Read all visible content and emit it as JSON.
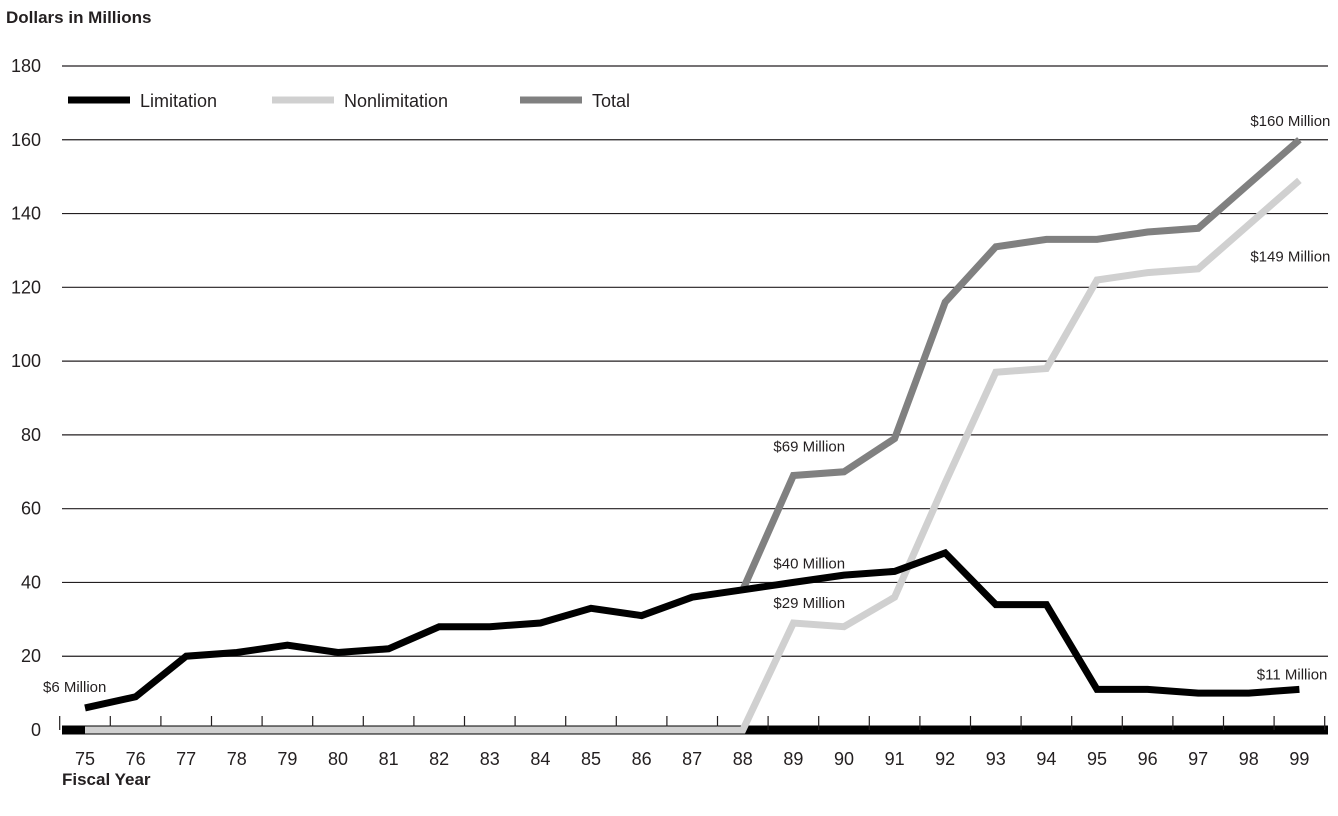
{
  "chart_data": {
    "type": "line",
    "title": "",
    "ylabel": "Dollars in Millions",
    "xlabel": "Fiscal Year",
    "ylim": [
      0,
      180
    ],
    "yticks": [
      "0",
      "20",
      "40",
      "60",
      "80",
      "100",
      "120",
      "140",
      "160",
      "180"
    ],
    "categories": [
      "75",
      "76",
      "77",
      "78",
      "79",
      "80",
      "81",
      "82",
      "83",
      "84",
      "85",
      "86",
      "87",
      "88",
      "89",
      "90",
      "91",
      "92",
      "93",
      "94",
      "95",
      "96",
      "97",
      "98",
      "99"
    ],
    "grid": true,
    "legend_position": "top-left",
    "series": [
      {
        "name": "Limitation",
        "color": "#000000",
        "values": [
          6,
          9,
          20,
          21,
          23,
          21,
          22,
          28,
          28,
          29,
          33,
          31,
          36,
          38,
          40,
          42,
          43,
          48,
          34,
          34,
          11,
          11,
          10,
          10,
          11
        ]
      },
      {
        "name": "Nonlimitation",
        "color": "#d0d0d0",
        "values": [
          0,
          0,
          0,
          0,
          0,
          0,
          0,
          0,
          0,
          0,
          0,
          0,
          0,
          0,
          29,
          28,
          36,
          67,
          97,
          98,
          122,
          124,
          125,
          137,
          149
        ]
      },
      {
        "name": "Total",
        "color": "#808080",
        "values": [
          null,
          null,
          null,
          null,
          null,
          null,
          null,
          null,
          null,
          null,
          null,
          null,
          null,
          38,
          69,
          70,
          79,
          116,
          131,
          133,
          133,
          135,
          136,
          148,
          160
        ]
      }
    ],
    "annotations": [
      {
        "text": "$6 Million",
        "category": "75",
        "value": 6
      },
      {
        "text": "$69 Million",
        "category": "89",
        "value": 69
      },
      {
        "text": "$40 Million",
        "category": "89",
        "value": 40
      },
      {
        "text": "$29 Million",
        "category": "89",
        "value": 29
      },
      {
        "text": "$160 Million",
        "category": "99",
        "value": 160
      },
      {
        "text": "$149 Million",
        "category": "99",
        "value": 149
      },
      {
        "text": "$11 Million",
        "category": "99",
        "value": 11
      }
    ]
  }
}
